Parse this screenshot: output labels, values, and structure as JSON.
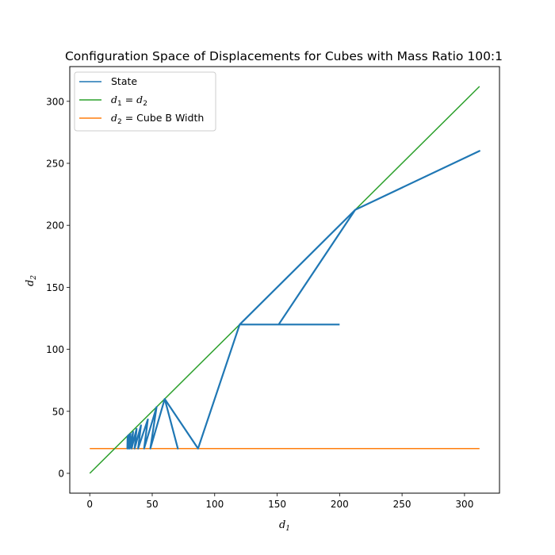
{
  "chart_data": {
    "type": "line",
    "title": "Configuration Space of Displacements for Cubes with Mass Ratio 100:1",
    "xlabel": {
      "base": "d",
      "sub": "1"
    },
    "ylabel": {
      "base": "d",
      "sub": "2"
    },
    "xlim": [
      -16,
      328
    ],
    "ylim": [
      -16,
      328
    ],
    "xticks": [
      0,
      50,
      100,
      150,
      200,
      250,
      300
    ],
    "yticks": [
      0,
      50,
      100,
      150,
      200,
      250,
      300
    ],
    "grid": false,
    "legend_position": "top-left",
    "series": [
      {
        "name": "State",
        "color": "#1f77b4",
        "x": [
          200,
          120,
          151.2,
          212.5,
          312,
          212.5,
          120,
          86.7,
          60,
          70.5,
          60,
          48.5,
          53.5,
          43.5,
          46.5,
          38.7,
          41,
          35.9,
          37.5,
          33.5,
          34.7,
          32,
          32.6,
          31,
          31.3,
          30.4,
          30.6,
          30.1,
          30.3
        ],
        "y": [
          120,
          120,
          120,
          212.5,
          260,
          212.5,
          120,
          20,
          60,
          20,
          60,
          20,
          53.5,
          20,
          43.5,
          20,
          38.7,
          20,
          35.9,
          20,
          33.5,
          20,
          32,
          20,
          31,
          20,
          30.4,
          20,
          30.1
        ]
      },
      {
        "name": "d1 = d2",
        "color": "#2ca02c",
        "label_parts": [
          "d",
          "1",
          " = ",
          "d",
          "2"
        ],
        "x": [
          0,
          312
        ],
        "y": [
          0,
          312
        ]
      },
      {
        "name": "d2 = Cube B Width",
        "color": "#ff7f0e",
        "label_parts": [
          "d",
          "2",
          " = Cube B Width"
        ],
        "x": [
          0,
          312
        ],
        "y": [
          20,
          20
        ]
      }
    ]
  }
}
